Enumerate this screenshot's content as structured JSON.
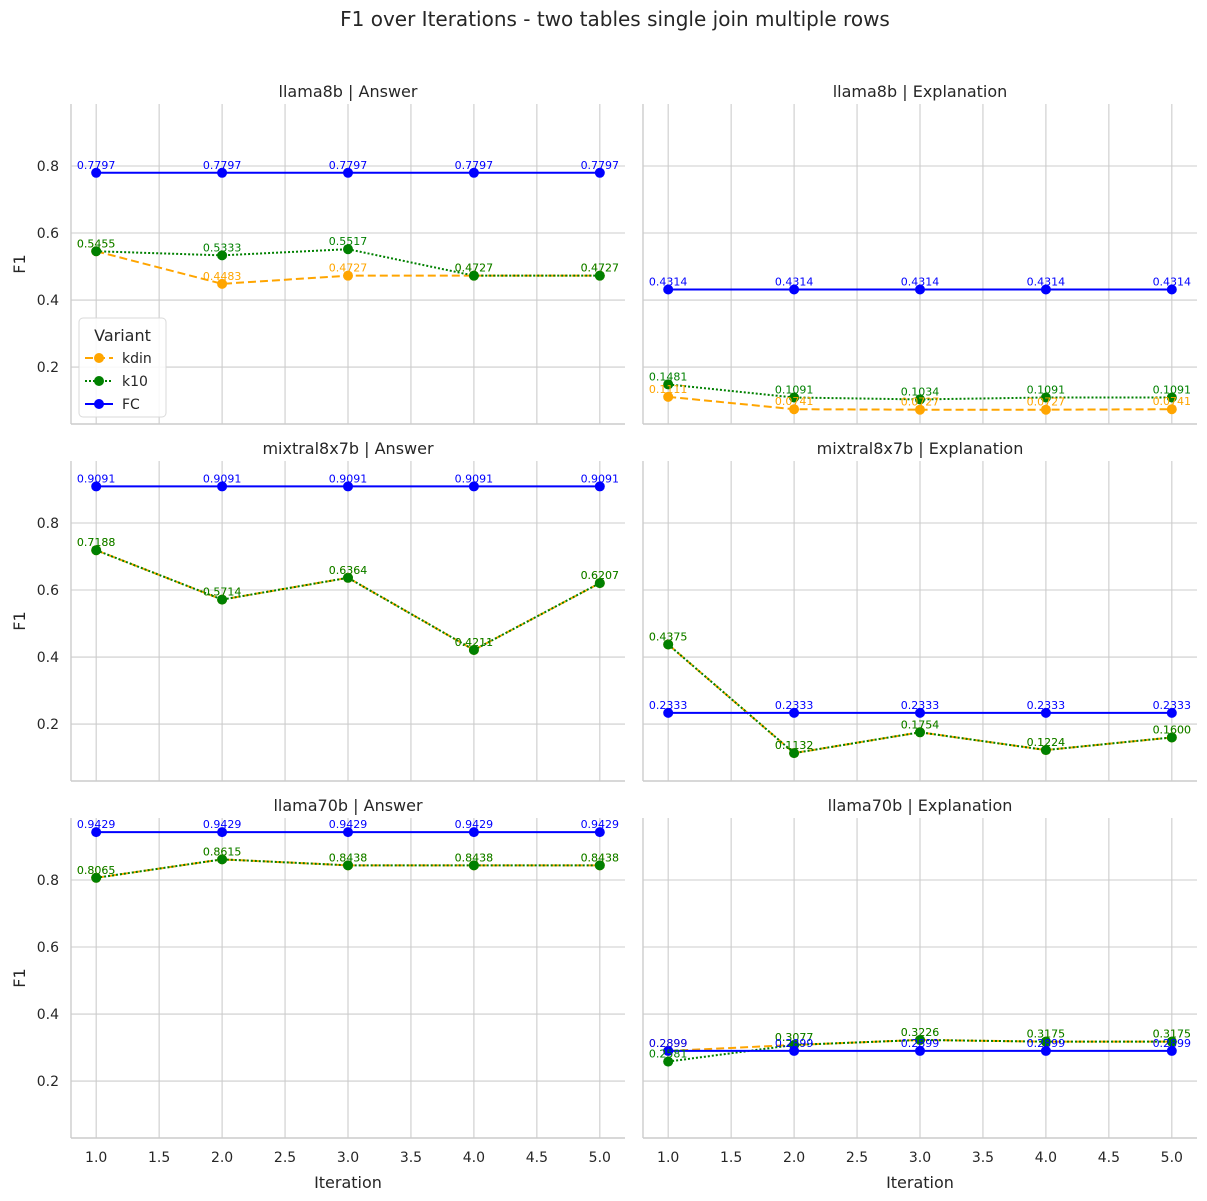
{
  "title": "F1 over Iterations - two tables single join multiple rows",
  "x_tick_labels": [
    "1.0",
    "1.5",
    "2.0",
    "2.5",
    "3.0",
    "3.5",
    "4.0",
    "4.5",
    "5.0"
  ],
  "y_tick_labels": [
    "0.2",
    "0.4",
    "0.6",
    "0.8"
  ],
  "xlabel": "Iteration",
  "ylabel": "F1",
  "legend": {
    "title": "Variant",
    "entries": [
      {
        "name": "kdin",
        "color": "#ffa500",
        "dash": "dashed"
      },
      {
        "name": "k10",
        "color": "#008000",
        "dash": "dotted"
      },
      {
        "name": "FC",
        "color": "#0000ff",
        "dash": "solid"
      }
    ]
  },
  "chart_data": [
    {
      "type": "line",
      "title": "llama8b | Answer",
      "x": [
        1,
        2,
        3,
        4,
        5
      ],
      "xlim": [
        0.8,
        5.2
      ],
      "ylim": [
        0.03,
        0.985
      ],
      "series": [
        {
          "name": "kdin",
          "color": "#ffa500",
          "dash": "dashed",
          "values": [
            0.5455,
            0.4483,
            0.4727,
            0.4727,
            0.4727
          ],
          "labels": [
            "0.5455",
            "0.4483",
            "0.4727",
            "0.4727",
            "0.4727"
          ]
        },
        {
          "name": "k10",
          "color": "#008000",
          "dash": "dotted",
          "values": [
            0.5455,
            0.5333,
            0.5517,
            0.4727,
            0.4727
          ],
          "labels": [
            "0.5455",
            "0.5333",
            "0.5517",
            "0.4727",
            "0.4727"
          ]
        },
        {
          "name": "FC",
          "color": "#0000ff",
          "dash": "solid",
          "values": [
            0.7797,
            0.7797,
            0.7797,
            0.7797,
            0.7797
          ],
          "labels": [
            "0.7797",
            "0.7797",
            "0.7797",
            "0.7797",
            "0.7797"
          ]
        }
      ]
    },
    {
      "type": "line",
      "title": "llama8b | Explanation",
      "x": [
        1,
        2,
        3,
        4,
        5
      ],
      "xlim": [
        0.8,
        5.2
      ],
      "ylim": [
        0.03,
        0.985
      ],
      "series": [
        {
          "name": "kdin",
          "color": "#ffa500",
          "dash": "dashed",
          "values": [
            0.1111,
            0.0741,
            0.0727,
            0.0727,
            0.0741
          ],
          "labels": [
            "0.1111",
            "0.0741",
            "0.0727",
            "0.0727",
            "0.0741"
          ]
        },
        {
          "name": "k10",
          "color": "#008000",
          "dash": "dotted",
          "values": [
            0.1481,
            0.1091,
            0.1034,
            0.1091,
            0.1091
          ],
          "labels": [
            "0.1481",
            "0.1091",
            "0.1034",
            "0.1091",
            "0.1091"
          ]
        },
        {
          "name": "FC",
          "color": "#0000ff",
          "dash": "solid",
          "values": [
            0.4314,
            0.4314,
            0.4314,
            0.4314,
            0.4314
          ],
          "labels": [
            "0.4314",
            "0.4314",
            "0.4314",
            "0.4314",
            "0.4314"
          ]
        }
      ]
    },
    {
      "type": "line",
      "title": "mixtral8x7b | Answer",
      "x": [
        1,
        2,
        3,
        4,
        5
      ],
      "xlim": [
        0.8,
        5.2
      ],
      "ylim": [
        0.03,
        0.985
      ],
      "series": [
        {
          "name": "kdin",
          "color": "#ffa500",
          "dash": "dashed",
          "values": [
            0.7188,
            0.5714,
            0.6364,
            0.4211,
            0.6207
          ],
          "labels": [
            "0.7188",
            "0.5714",
            "0.6364",
            "0.4211",
            "0.6207"
          ]
        },
        {
          "name": "k10",
          "color": "#008000",
          "dash": "dotted",
          "values": [
            0.7188,
            0.5714,
            0.6364,
            0.4211,
            0.6207
          ],
          "labels": [
            "0.7188",
            "0.5714",
            "0.6364",
            "0.4211",
            "0.6207"
          ]
        },
        {
          "name": "FC",
          "color": "#0000ff",
          "dash": "solid",
          "values": [
            0.9091,
            0.9091,
            0.9091,
            0.9091,
            0.9091
          ],
          "labels": [
            "0.9091",
            "0.9091",
            "0.9091",
            "0.9091",
            "0.9091"
          ]
        }
      ]
    },
    {
      "type": "line",
      "title": "mixtral8x7b | Explanation",
      "x": [
        1,
        2,
        3,
        4,
        5
      ],
      "xlim": [
        0.8,
        5.2
      ],
      "ylim": [
        0.03,
        0.985
      ],
      "series": [
        {
          "name": "kdin",
          "color": "#ffa500",
          "dash": "dashed",
          "values": [
            0.4375,
            0.1132,
            0.1754,
            0.1224,
            0.16
          ],
          "labels": [
            "0.4375",
            "0.1132",
            "0.1754",
            "0.1224",
            "0.1600"
          ]
        },
        {
          "name": "k10",
          "color": "#008000",
          "dash": "dotted",
          "values": [
            0.4375,
            0.1132,
            0.1754,
            0.1224,
            0.16
          ],
          "labels": [
            "0.4375",
            "0.1132",
            "0.1754",
            "0.1224",
            "0.1600"
          ]
        },
        {
          "name": "FC",
          "color": "#0000ff",
          "dash": "solid",
          "values": [
            0.2333,
            0.2333,
            0.2333,
            0.2333,
            0.2333
          ],
          "labels": [
            "0.2333",
            "0.2333",
            "0.2333",
            "0.2333",
            "0.2333"
          ]
        }
      ]
    },
    {
      "type": "line",
      "title": "llama70b | Answer",
      "x": [
        1,
        2,
        3,
        4,
        5
      ],
      "xlim": [
        0.8,
        5.2
      ],
      "ylim": [
        0.03,
        0.985
      ],
      "series": [
        {
          "name": "kdin",
          "color": "#ffa500",
          "dash": "dashed",
          "values": [
            0.8065,
            0.8615,
            0.8438,
            0.8438,
            0.8438
          ],
          "labels": [
            "0.8065",
            "0.8615",
            "0.8438",
            "0.8438",
            "0.8438"
          ]
        },
        {
          "name": "k10",
          "color": "#008000",
          "dash": "dotted",
          "values": [
            0.8065,
            0.8615,
            0.8438,
            0.8438,
            0.8438
          ],
          "labels": [
            "0.8065",
            "0.8615",
            "0.8438",
            "0.8438",
            "0.8438"
          ]
        },
        {
          "name": "FC",
          "color": "#0000ff",
          "dash": "solid",
          "values": [
            0.9429,
            0.9429,
            0.9429,
            0.9429,
            0.9429
          ],
          "labels": [
            "0.9429",
            "0.9429",
            "0.9429",
            "0.9429",
            "0.9429"
          ]
        }
      ]
    },
    {
      "type": "line",
      "title": "llama70b | Explanation",
      "x": [
        1,
        2,
        3,
        4,
        5
      ],
      "xlim": [
        0.8,
        5.2
      ],
      "ylim": [
        0.03,
        0.985
      ],
      "series": [
        {
          "name": "kdin",
          "color": "#ffa500",
          "dash": "dashed",
          "values": [
            0.2899,
            0.3077,
            0.3226,
            0.3175,
            0.3175
          ],
          "labels": [
            "0.2899",
            "0.3077",
            "0.3226",
            "0.3175",
            "0.3175"
          ]
        },
        {
          "name": "k10",
          "color": "#008000",
          "dash": "dotted",
          "values": [
            0.2581,
            0.3077,
            0.3226,
            0.3175,
            0.3175
          ],
          "labels": [
            "0.2581",
            "0.3077",
            "0.3226",
            "0.3175",
            "0.3175"
          ]
        },
        {
          "name": "FC",
          "color": "#0000ff",
          "dash": "solid",
          "values": [
            0.2899,
            0.2899,
            0.2899,
            0.2899,
            0.2899
          ],
          "labels": [
            "0.2899",
            "0.2899",
            "0.2899",
            "0.2899",
            "0.2899"
          ]
        }
      ]
    }
  ]
}
